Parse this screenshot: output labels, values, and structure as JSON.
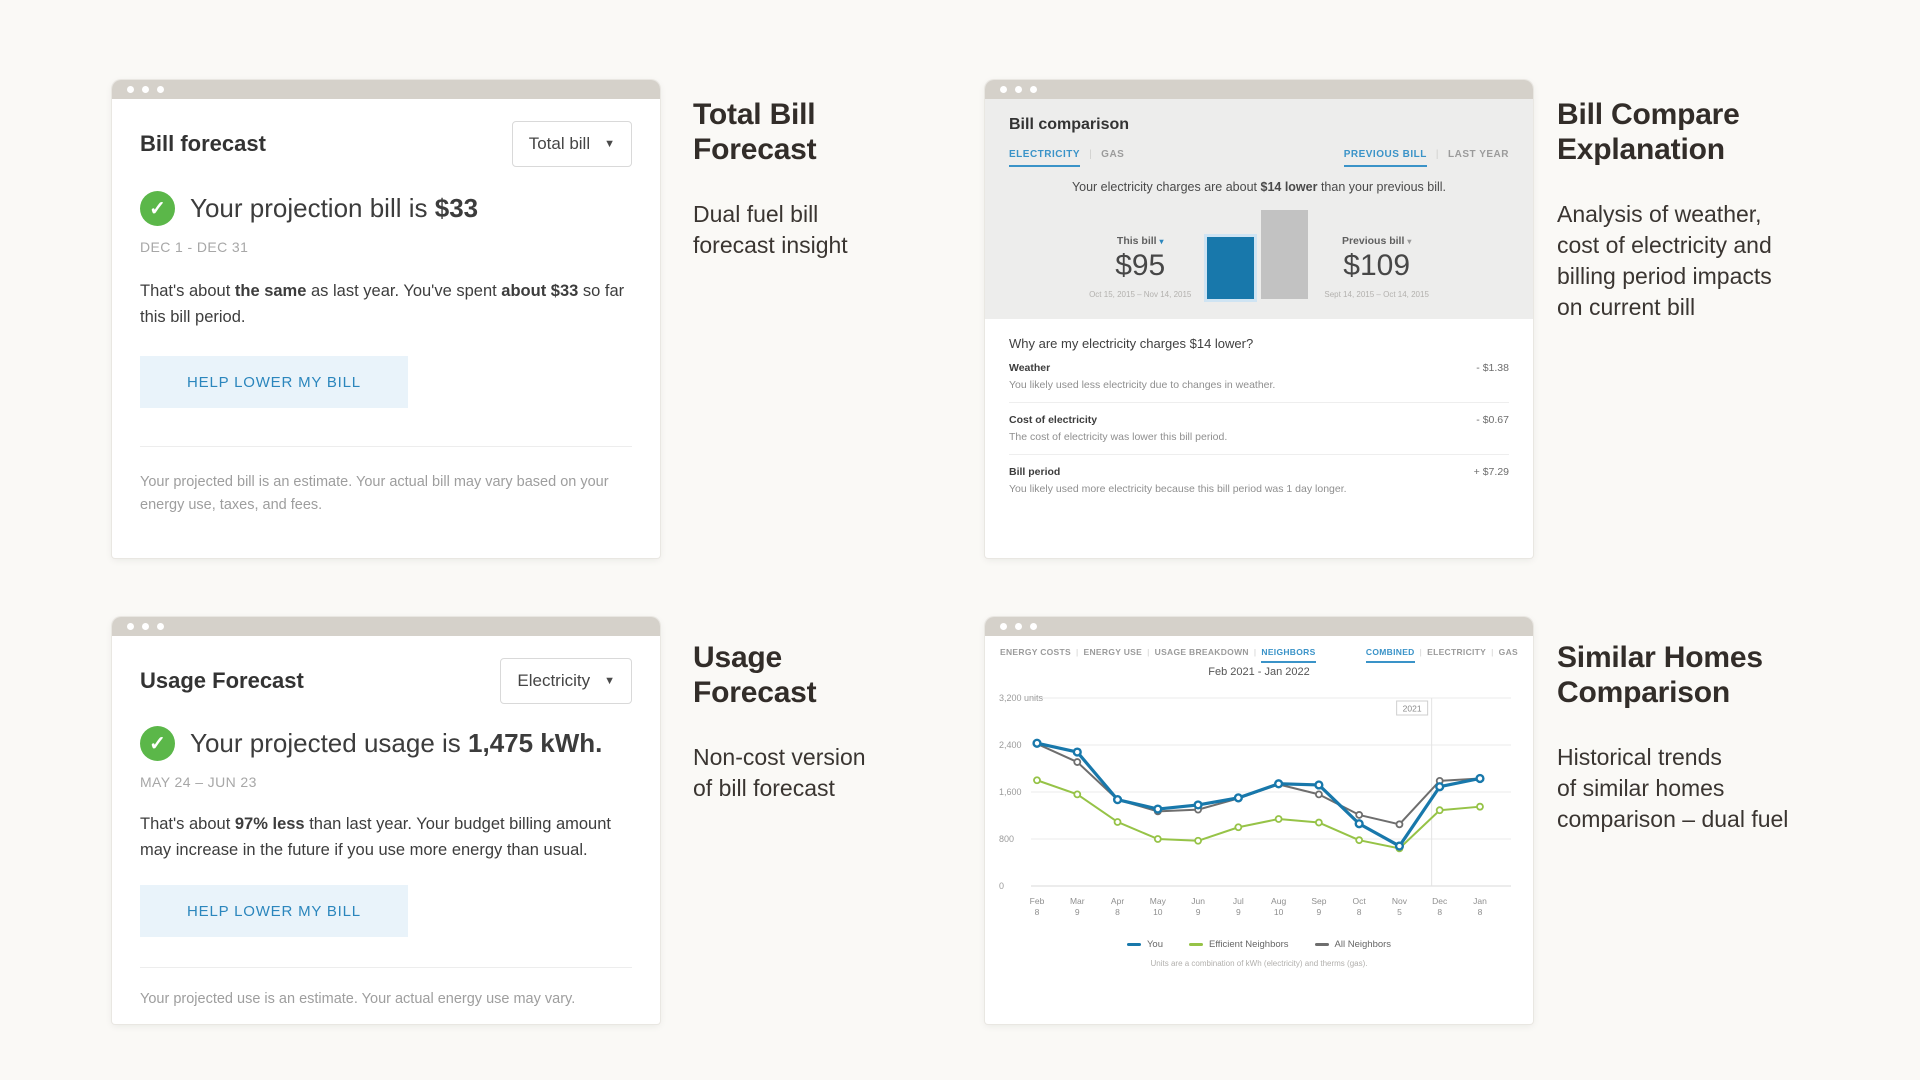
{
  "colors": {
    "accent_blue": "#1878ab",
    "active_tab_blue": "#3a93c8",
    "link_blue": "#2b86bd",
    "success_green": "#5bb749",
    "chart_green": "#96c347",
    "chart_gray": "#6e6e6e",
    "bar_gray": "#c2c2c2",
    "chrome_bar": "#d5d1ca",
    "page_background": "#faf9f6"
  },
  "windows": {
    "bill_forecast": {
      "title": "Bill forecast",
      "dropdown_value": "Total bill",
      "status": [
        {
          "t": "Your projection bill is "
        },
        {
          "t": "$33",
          "b": true
        }
      ],
      "period": "DEC 1 - DEC 31",
      "summary": [
        {
          "t": "That's about "
        },
        {
          "t": "the same",
          "b": true
        },
        {
          "t": " as last year. You've spent "
        },
        {
          "t": "about $33",
          "b": true
        },
        {
          "t": " so far this bill period."
        }
      ],
      "button_label": "HELP LOWER MY BILL",
      "disclaimer": "Your projected bill is an estimate. Your actual bill may vary based on your energy use, taxes, and fees."
    },
    "bill_comparison": {
      "title": "Bill comparison",
      "fuel_tabs": [
        {
          "label": "ELECTRICITY",
          "active": true
        },
        {
          "label": "GAS",
          "active": false
        }
      ],
      "period_tabs": [
        {
          "label": "PREVIOUS BILL",
          "active": true
        },
        {
          "label": "LAST YEAR",
          "active": false
        }
      ],
      "message": [
        {
          "t": "Your electricity charges are about "
        },
        {
          "t": "$14 lower",
          "b": true
        },
        {
          "t": " than your previous bill."
        }
      ],
      "this_bill": {
        "label": "This bill",
        "amount": "$95",
        "dates": "Oct 15, 2015 – Nov 14, 2015"
      },
      "previous_bill": {
        "label": "Previous bill",
        "amount": "$109",
        "dates": "Sept 14, 2015 – Oct 14, 2015"
      },
      "question": "Why are my electricity charges $14 lower?",
      "factors": [
        {
          "name": "Weather",
          "amount": "- $1.38",
          "desc": "You likely used less electricity due to changes in weather."
        },
        {
          "name": "Cost of electricity",
          "amount": "- $0.67",
          "desc": "The cost of electricity was lower this bill period."
        },
        {
          "name": "Bill period",
          "amount": "+ $7.29",
          "desc": "You likely used more electricity because this bill period was 1 day longer."
        }
      ]
    },
    "usage_forecast": {
      "title": "Usage Forecast",
      "dropdown_value": "Electricity",
      "status": [
        {
          "t": "Your projected usage is "
        },
        {
          "t": "1,475 kWh.",
          "b": true
        }
      ],
      "period": "MAY 24 – JUN 23",
      "summary": [
        {
          "t": "That's about "
        },
        {
          "t": "97% less",
          "b": true
        },
        {
          "t": " than last year. Your budget billing amount may increase in the future if you use more energy than usual."
        }
      ],
      "button_label": "HELP LOWER MY BILL",
      "disclaimer": "Your projected use is an estimate. Your actual energy use may vary."
    },
    "neighbors": {
      "nav_tabs": [
        {
          "label": "ENERGY COSTS",
          "active": false
        },
        {
          "label": "ENERGY USE",
          "active": false
        },
        {
          "label": "USAGE BREAKDOWN",
          "active": false
        },
        {
          "label": "NEIGHBORS",
          "active": true
        }
      ],
      "fuel_tabs": [
        {
          "label": "COMBINED",
          "active": true
        },
        {
          "label": "ELECTRICITY",
          "active": false
        },
        {
          "label": "GAS",
          "active": false
        }
      ]
    }
  },
  "captions": {
    "total_bill": {
      "title": "Total Bill\nForecast",
      "subtitle": "Dual fuel bill\nforecast insight"
    },
    "bill_compare": {
      "title": "Bill Compare\nExplanation",
      "subtitle": "Analysis of weather,\ncost of electricity and\nbilling period impacts\non current bill"
    },
    "usage": {
      "title": "Usage\nForecast",
      "subtitle": "Non-cost version\nof bill forecast"
    },
    "similar_homes": {
      "title": "Similar Homes\nComparison",
      "subtitle": "Historical trends\nof similar homes\ncomparison – dual fuel"
    }
  },
  "chart_data": [
    {
      "type": "bar",
      "context": "bill-comparison",
      "categories": [
        "This bill",
        "Previous bill"
      ],
      "values": [
        95,
        109
      ],
      "unit": "USD",
      "colors": [
        "#1878ab",
        "#c2c2c2"
      ]
    },
    {
      "type": "line",
      "context": "similar-homes-comparison",
      "title": "Feb 2021 - Jan 2022",
      "x_labels": [
        [
          "Feb",
          "8"
        ],
        [
          "Mar",
          "9"
        ],
        [
          "Apr",
          "8"
        ],
        [
          "May",
          "10"
        ],
        [
          "Jun",
          "9"
        ],
        [
          "Jul",
          "9"
        ],
        [
          "Aug",
          "10"
        ],
        [
          "Sep",
          "9"
        ],
        [
          "Oct",
          "8"
        ],
        [
          "Nov",
          "5"
        ],
        [
          "Dec",
          "8"
        ],
        [
          "Jan",
          "8"
        ]
      ],
      "y_ticks": [
        {
          "value": 3200,
          "label": "3,200 units"
        },
        {
          "value": 2400,
          "label": "2,400"
        },
        {
          "value": 1600,
          "label": "1,600"
        },
        {
          "value": 800,
          "label": "800"
        },
        {
          "value": 0,
          "label": "0"
        }
      ],
      "ylim": [
        0,
        3200
      ],
      "grid": true,
      "legend_position": "bottom",
      "year_marker": {
        "label": "2021",
        "x_index": 9.8
      },
      "series": [
        {
          "name": "You",
          "color": "#1878ab",
          "width": 3.2,
          "values": [
            2430,
            2280,
            1470,
            1310,
            1380,
            1500,
            1740,
            1720,
            1060,
            680,
            1690,
            1830
          ]
        },
        {
          "name": "Efficient Neighbors",
          "color": "#96c347",
          "width": 2,
          "values": [
            1800,
            1560,
            1090,
            800,
            770,
            1000,
            1140,
            1080,
            780,
            640,
            1290,
            1350
          ]
        },
        {
          "name": "All Neighbors",
          "color": "#6e6e6e",
          "width": 2,
          "values": [
            2420,
            2110,
            1470,
            1270,
            1300,
            1490,
            1730,
            1560,
            1210,
            1050,
            1790,
            1830
          ]
        }
      ],
      "footnote": "Units are a combination of kWh (electricity) and therms (gas)."
    }
  ]
}
